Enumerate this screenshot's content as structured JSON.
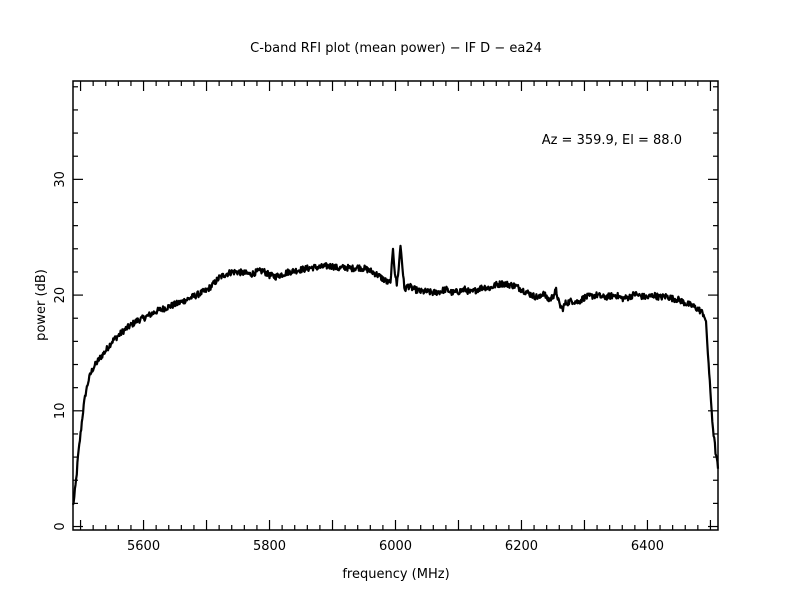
{
  "chart_data": {
    "type": "line",
    "title": "C-band RFI plot (mean power) − IF D − ea24",
    "annotation": "Az = 359.9, El = 88.0",
    "xlabel": "frequency (MHz)",
    "ylabel": "power (dB)",
    "xlim": [
      5488,
      6512
    ],
    "ylim": [
      -0.3,
      38.5
    ],
    "x_ticks": [
      5600,
      5800,
      6000,
      6200,
      6400
    ],
    "x_tick_labels": [
      "5600",
      "5800",
      "6000",
      "6200",
      "6400"
    ],
    "y_ticks": [
      0,
      10,
      20,
      30
    ],
    "y_tick_labels": [
      "0",
      "10",
      "20",
      "30"
    ],
    "grid": false,
    "line_color": "#000000",
    "series": [
      {
        "x": [
          5488,
          5490,
          5493,
          5496,
          5500,
          5504,
          5508,
          5512,
          5516,
          5520,
          5525,
          5530,
          5540,
          5550,
          5560,
          5570,
          5580,
          5590,
          5600,
          5620,
          5640,
          5660,
          5680,
          5700,
          5710,
          5720,
          5730,
          5740,
          5750,
          5760,
          5770,
          5780,
          5790,
          5800,
          5810,
          5820,
          5830,
          5840,
          5850,
          5860,
          5870,
          5880,
          5890,
          5900,
          5910,
          5920,
          5930,
          5940,
          5950,
          5960,
          5970,
          5980,
          5985,
          5990,
          5993,
          5996,
          5999,
          6002,
          6005,
          6008,
          6011,
          6014,
          6017,
          6020,
          6030,
          6040,
          6050,
          6060,
          6070,
          6080,
          6090,
          6100,
          6110,
          6120,
          6130,
          6140,
          6150,
          6160,
          6170,
          6180,
          6190,
          6200,
          6210,
          6220,
          6230,
          6235,
          6240,
          6245,
          6250,
          6255,
          6260,
          6265,
          6270,
          6280,
          6290,
          6300,
          6310,
          6320,
          6330,
          6340,
          6350,
          6360,
          6370,
          6380,
          6390,
          6400,
          6410,
          6420,
          6430,
          6440,
          6450,
          6460,
          6470,
          6480,
          6485,
          6490,
          6493,
          6496,
          6500,
          6504,
          6508,
          6512
        ],
        "y": [
          1.8,
          2.5,
          4.0,
          6.0,
          8.0,
          10.0,
          11.5,
          12.5,
          13.2,
          13.7,
          14.1,
          14.5,
          15.2,
          16.0,
          16.5,
          17.0,
          17.4,
          17.8,
          18.0,
          18.6,
          19.0,
          19.4,
          19.9,
          20.4,
          20.9,
          21.5,
          21.8,
          22.0,
          22.0,
          21.9,
          21.8,
          22.0,
          22.1,
          21.7,
          21.6,
          21.8,
          22.0,
          22.1,
          22.2,
          22.3,
          22.4,
          22.4,
          22.5,
          22.5,
          22.3,
          22.4,
          22.3,
          22.4,
          22.3,
          22.1,
          21.8,
          21.4,
          21.2,
          21.0,
          21.5,
          24.1,
          22.0,
          20.9,
          22.3,
          24.3,
          22.5,
          20.5,
          20.6,
          20.8,
          20.5,
          20.3,
          20.3,
          20.2,
          20.3,
          20.5,
          20.2,
          20.3,
          20.5,
          20.2,
          20.5,
          20.7,
          20.6,
          20.9,
          21.0,
          20.9,
          20.8,
          20.5,
          20.2,
          19.9,
          19.8,
          20.3,
          19.7,
          19.6,
          19.9,
          20.4,
          19.2,
          18.8,
          19.3,
          19.5,
          19.4,
          19.8,
          19.9,
          20.0,
          19.8,
          19.9,
          20.0,
          19.7,
          19.8,
          20.1,
          19.9,
          19.8,
          20.0,
          19.8,
          19.9,
          19.7,
          19.6,
          19.3,
          19.1,
          18.8,
          18.6,
          18.3,
          17.5,
          15.0,
          11.5,
          8.5,
          6.5,
          5.0
        ]
      }
    ]
  }
}
